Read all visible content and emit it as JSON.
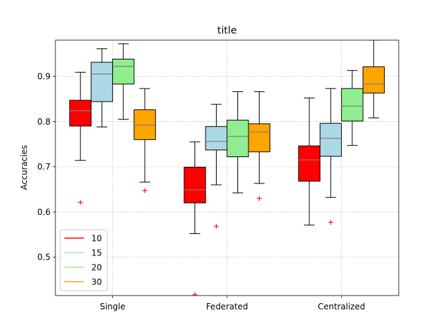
{
  "chart_data": {
    "type": "box",
    "title": "title",
    "xlabel": "",
    "ylabel": "Accuracies",
    "categories": [
      "Single",
      "Federated",
      "Centralized"
    ],
    "ylim": [
      0.415,
      0.98
    ],
    "yticks": [
      0.5,
      0.6,
      0.7,
      0.8,
      0.9
    ],
    "ytick_labels": [
      "0.5",
      "0.6",
      "0.7",
      "0.8",
      "0.9"
    ],
    "grid": true,
    "legend_position": "lower-left",
    "series": [
      {
        "name": "10",
        "color": "#ff0000",
        "boxes": [
          {
            "whislo": 0.714,
            "q1": 0.79,
            "med": 0.824,
            "q3": 0.847,
            "whishi": 0.909,
            "fliers": [
              0.621
            ]
          },
          {
            "whislo": 0.552,
            "q1": 0.62,
            "med": 0.649,
            "q3": 0.699,
            "whishi": 0.755,
            "fliers": [
              0.417
            ]
          },
          {
            "whislo": 0.571,
            "q1": 0.668,
            "med": 0.715,
            "q3": 0.746,
            "whishi": 0.852,
            "fliers": []
          }
        ]
      },
      {
        "name": "15",
        "color": "#add8e6",
        "boxes": [
          {
            "whislo": 0.788,
            "q1": 0.844,
            "med": 0.905,
            "q3": 0.931,
            "whishi": 0.961,
            "fliers": []
          },
          {
            "whislo": 0.66,
            "q1": 0.737,
            "med": 0.756,
            "q3": 0.789,
            "whishi": 0.838,
            "fliers": [
              0.568
            ]
          },
          {
            "whislo": 0.632,
            "q1": 0.723,
            "med": 0.763,
            "q3": 0.796,
            "whishi": 0.873,
            "fliers": [
              0.577
            ]
          }
        ]
      },
      {
        "name": "20",
        "color": "#90ee90",
        "boxes": [
          {
            "whislo": 0.805,
            "q1": 0.883,
            "med": 0.922,
            "q3": 0.938,
            "whishi": 0.972,
            "fliers": []
          },
          {
            "whislo": 0.642,
            "q1": 0.722,
            "med": 0.767,
            "q3": 0.803,
            "whishi": 0.866,
            "fliers": []
          },
          {
            "whislo": 0.747,
            "q1": 0.801,
            "med": 0.834,
            "q3": 0.873,
            "whishi": 0.913,
            "fliers": []
          }
        ]
      },
      {
        "name": "30",
        "color": "#ffa500",
        "boxes": [
          {
            "whislo": 0.666,
            "q1": 0.76,
            "med": 0.792,
            "q3": 0.826,
            "whishi": 0.873,
            "fliers": [
              0.647
            ]
          },
          {
            "whislo": 0.663,
            "q1": 0.733,
            "med": 0.777,
            "q3": 0.795,
            "whishi": 0.866,
            "fliers": [
              0.63
            ]
          },
          {
            "whislo": 0.808,
            "q1": 0.863,
            "med": 0.883,
            "q3": 0.921,
            "whishi": 0.98,
            "fliers": []
          }
        ]
      }
    ]
  }
}
